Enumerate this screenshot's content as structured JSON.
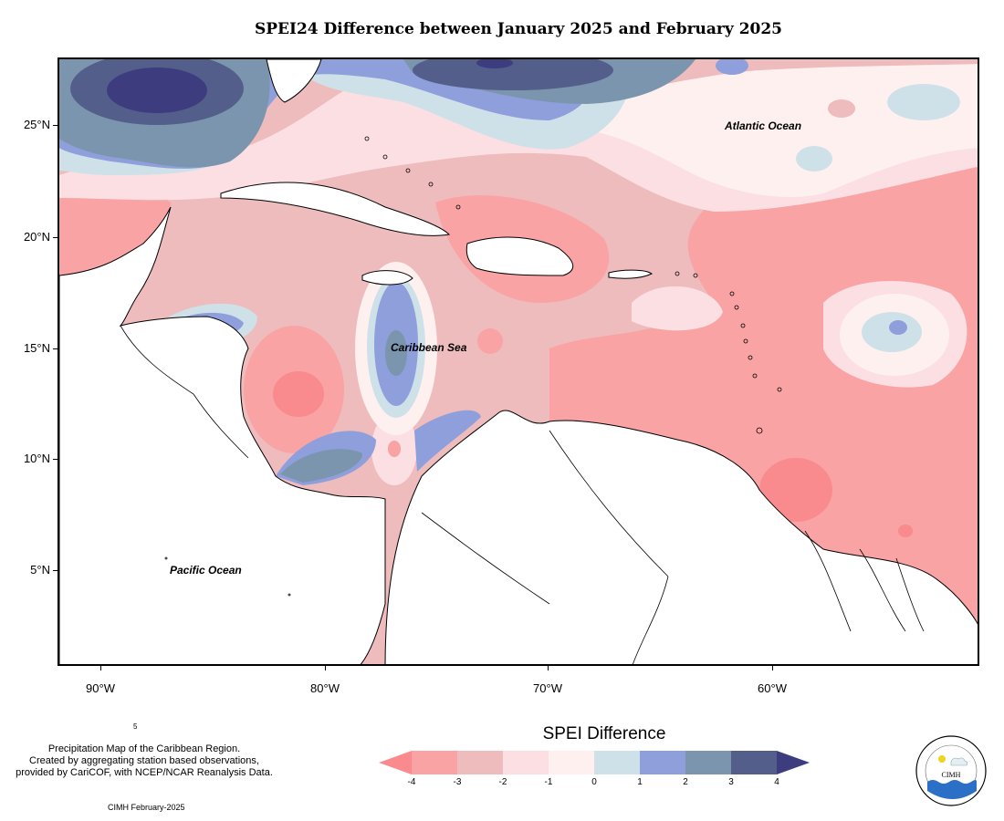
{
  "title": "SPEI24 Difference between January 2025 and February 2025",
  "y_axis": [
    "25°N",
    "20°N",
    "15°N",
    "10°N",
    "5°N"
  ],
  "x_axis": [
    "90°W",
    "80°W",
    "70°W",
    "60°W"
  ],
  "ocean_labels": {
    "atlantic": "Atlantic Ocean",
    "caribbean": "Caribbean Sea",
    "pacific": "Pacific Ocean"
  },
  "footnote": {
    "line1": "Precipitation Map of the Caribbean Region.",
    "line2": "Created by aggregating station based observations,",
    "line3": "provided by CariCOF, with NCEP/NCAR Reanalysis Data.",
    "stray": "5"
  },
  "credit": "CIMH February-2025",
  "legend": {
    "title": "SPEI Difference",
    "ticks": [
      "-4",
      "-3",
      "-2",
      "-1",
      "0",
      "1",
      "2",
      "3",
      "4"
    ],
    "colors": [
      "#f98a8e",
      "#f9a3a4",
      "#eebcbd",
      "#fbdfe3",
      "#fff0f0",
      "#cfe1e8",
      "#8e9fdb",
      "#7a95ad",
      "#535f8a",
      "#3c3c7e"
    ]
  },
  "logo": {
    "name": "CIMH",
    "ring_text": "Caribbean Institute for Meteorology and Hydrology"
  }
}
